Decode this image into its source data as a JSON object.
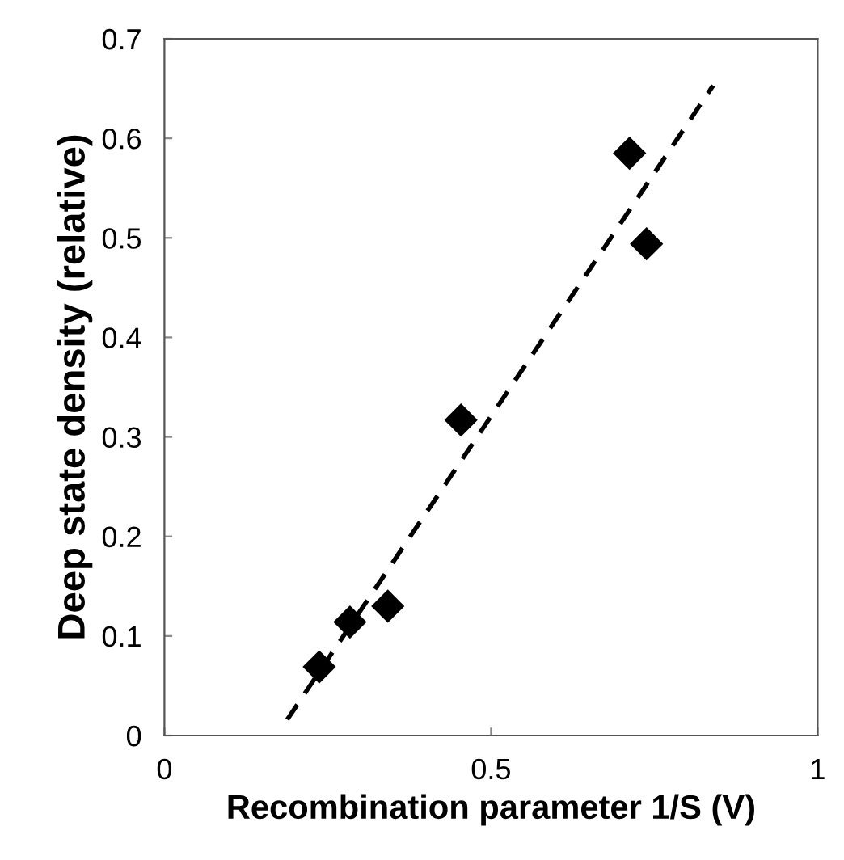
{
  "chart_data": {
    "type": "scatter",
    "xlabel": "Recombination parameter 1/S (V)",
    "ylabel": "Deep state density (relative)",
    "xlim": [
      0,
      1
    ],
    "xticks": [
      0,
      0.5,
      1
    ],
    "ylim": [
      0,
      0.7
    ],
    "yticks": [
      0,
      0.1,
      0.2,
      0.3,
      0.4,
      0.5,
      0.6,
      0.7
    ],
    "grid": false,
    "legend": false,
    "series": [
      {
        "color": "#000000",
        "marker": "diamond",
        "x": [
          0.237,
          0.284,
          0.342,
          0.454,
          0.712,
          0.738
        ],
        "values": [
          0.069,
          0.114,
          0.13,
          0.317,
          0.585,
          0.494
        ]
      },
      {
        "type": "line",
        "color": "#000000",
        "marker": "none",
        "line_style": "dashed",
        "x": [
          0.188,
          0.84
        ],
        "values": [
          0.016,
          0.653
        ]
      }
    ]
  }
}
